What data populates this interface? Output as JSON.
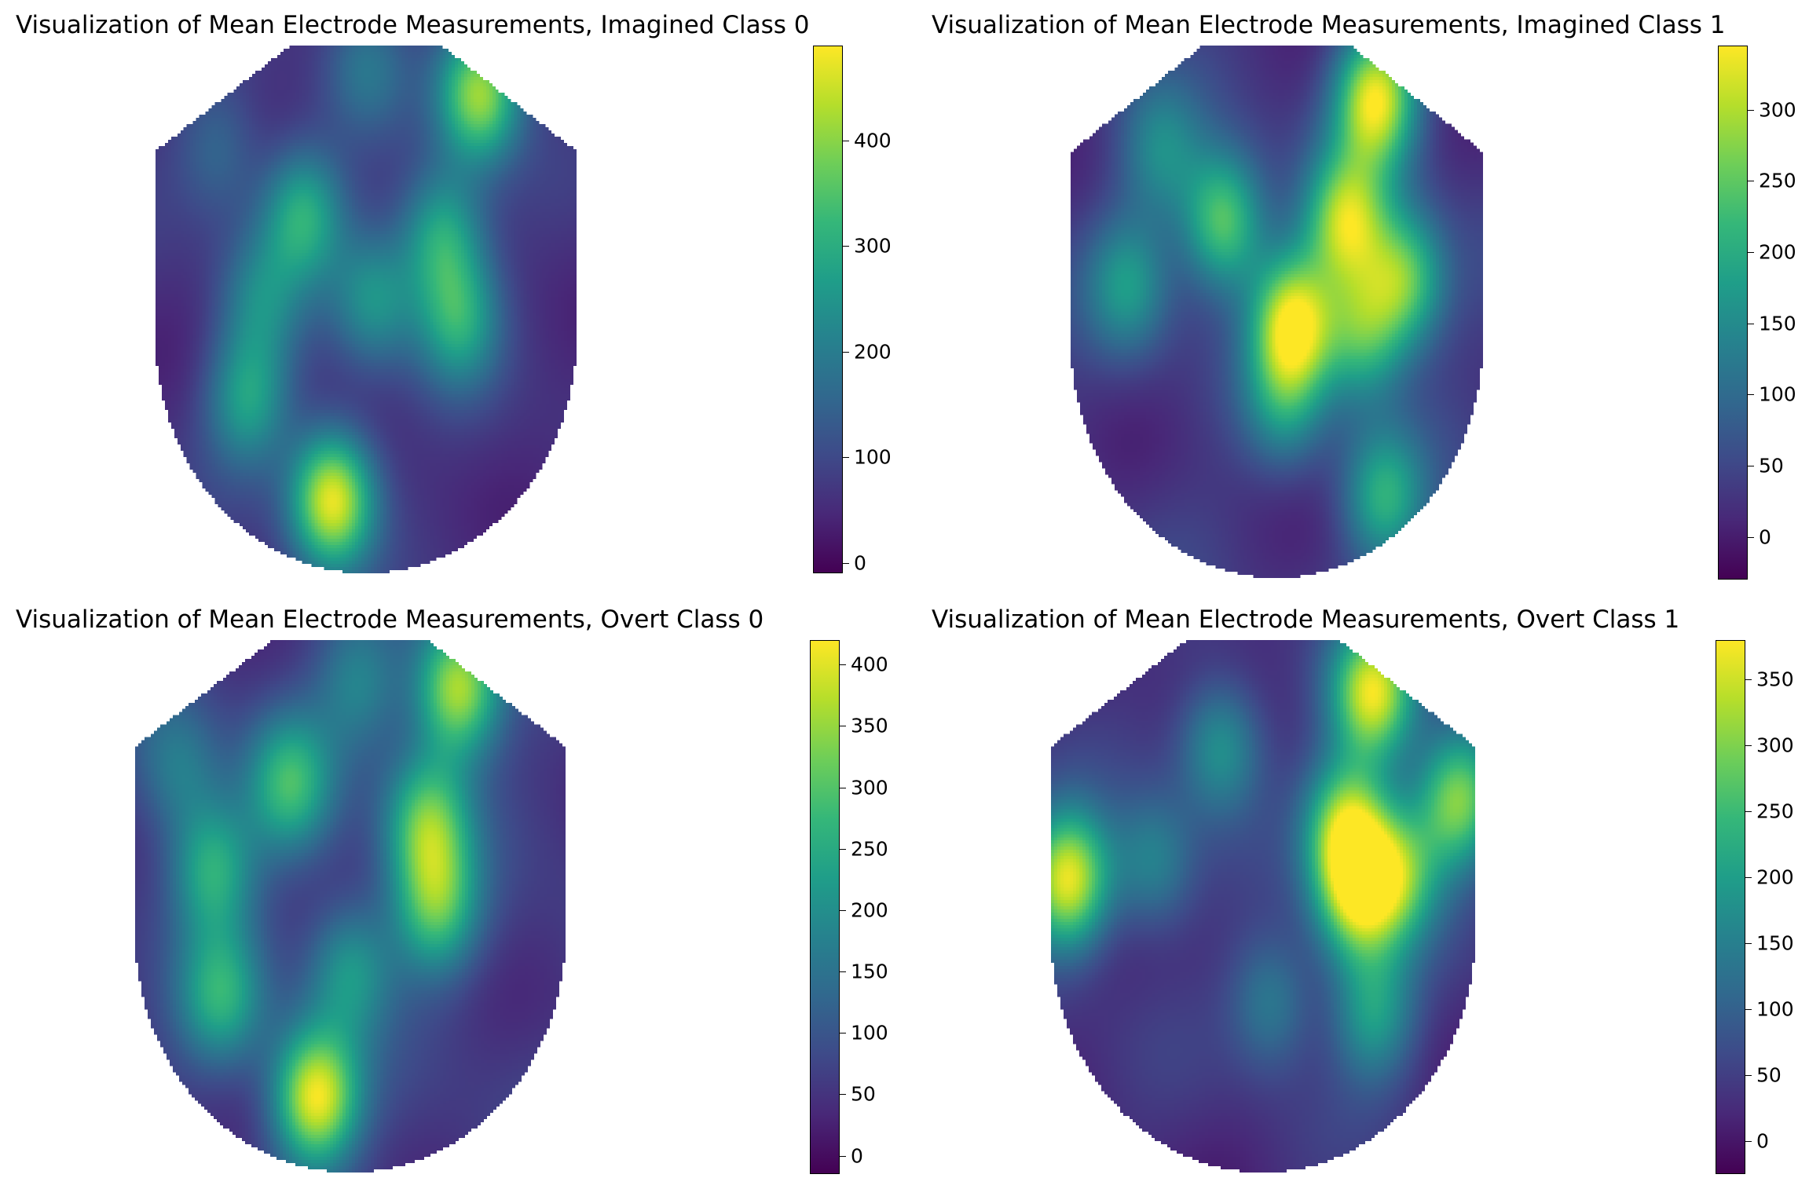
{
  "colormap": [
    "#440154",
    "#482878",
    "#3e4a89",
    "#31688e",
    "#26828e",
    "#1f9e89",
    "#35b779",
    "#6ece58",
    "#b5de2b",
    "#fde725"
  ],
  "chart_data": [
    {
      "type": "heatmap",
      "title": "Visualization of Mean Electrode Measurements, Imagined Class 0",
      "colorbar": {
        "range": [
          -10,
          490
        ],
        "ticks": [
          0,
          100,
          200,
          300,
          400
        ]
      },
      "base_level": 60,
      "hotspots": [
        {
          "x": 0.42,
          "y": 0.86,
          "value": 480
        },
        {
          "x": 0.77,
          "y": 0.09,
          "value": 420
        },
        {
          "x": 0.35,
          "y": 0.32,
          "value": 300
        },
        {
          "x": 0.68,
          "y": 0.36,
          "value": 290
        },
        {
          "x": 0.72,
          "y": 0.52,
          "value": 280
        },
        {
          "x": 0.22,
          "y": 0.67,
          "value": 270
        },
        {
          "x": 0.52,
          "y": 0.48,
          "value": 240
        },
        {
          "x": 0.25,
          "y": 0.48,
          "value": 200
        },
        {
          "x": 0.15,
          "y": 0.2,
          "value": 160
        },
        {
          "x": 0.5,
          "y": 0.04,
          "value": 170
        }
      ]
    },
    {
      "type": "heatmap",
      "title": "Visualization of Mean Electrode Measurements, Imagined Class 1",
      "colorbar": {
        "range": [
          -30,
          345
        ],
        "ticks": [
          0,
          50,
          100,
          150,
          200,
          250,
          300
        ]
      },
      "base_level": 30,
      "hotspots": [
        {
          "x": 0.74,
          "y": 0.1,
          "value": 340
        },
        {
          "x": 0.54,
          "y": 0.52,
          "value": 330
        },
        {
          "x": 0.67,
          "y": 0.33,
          "value": 290
        },
        {
          "x": 0.37,
          "y": 0.33,
          "value": 260
        },
        {
          "x": 0.81,
          "y": 0.44,
          "value": 250
        },
        {
          "x": 0.71,
          "y": 0.54,
          "value": 220
        },
        {
          "x": 0.76,
          "y": 0.85,
          "value": 200
        },
        {
          "x": 0.14,
          "y": 0.45,
          "value": 160
        },
        {
          "x": 0.52,
          "y": 0.67,
          "value": 150
        },
        {
          "x": 0.22,
          "y": 0.2,
          "value": 140
        }
      ]
    },
    {
      "type": "heatmap",
      "title": "Visualization of Mean Electrode Measurements, Overt Class 0",
      "colorbar": {
        "range": [
          -15,
          420
        ],
        "ticks": [
          0,
          50,
          100,
          150,
          200,
          250,
          300,
          350,
          400
        ]
      },
      "base_level": 60,
      "hotspots": [
        {
          "x": 0.42,
          "y": 0.86,
          "value": 415
        },
        {
          "x": 0.75,
          "y": 0.09,
          "value": 380
        },
        {
          "x": 0.68,
          "y": 0.34,
          "value": 300
        },
        {
          "x": 0.7,
          "y": 0.5,
          "value": 290
        },
        {
          "x": 0.36,
          "y": 0.27,
          "value": 270
        },
        {
          "x": 0.18,
          "y": 0.43,
          "value": 260
        },
        {
          "x": 0.2,
          "y": 0.67,
          "value": 250
        },
        {
          "x": 0.5,
          "y": 0.62,
          "value": 220
        },
        {
          "x": 0.52,
          "y": 0.08,
          "value": 180
        },
        {
          "x": 0.1,
          "y": 0.24,
          "value": 170
        }
      ]
    },
    {
      "type": "heatmap",
      "title": "Visualization of Mean Electrode Measurements, Overt Class 1",
      "colorbar": {
        "range": [
          -25,
          380
        ],
        "ticks": [
          0,
          50,
          100,
          150,
          200,
          250,
          300,
          350
        ]
      },
      "base_level": 30,
      "hotspots": [
        {
          "x": 0.04,
          "y": 0.45,
          "value": 370
        },
        {
          "x": 0.76,
          "y": 0.1,
          "value": 360
        },
        {
          "x": 0.7,
          "y": 0.35,
          "value": 320
        },
        {
          "x": 0.72,
          "y": 0.48,
          "value": 300
        },
        {
          "x": 0.96,
          "y": 0.3,
          "value": 300
        },
        {
          "x": 0.82,
          "y": 0.44,
          "value": 250
        },
        {
          "x": 0.76,
          "y": 0.7,
          "value": 200
        },
        {
          "x": 0.4,
          "y": 0.2,
          "value": 190
        },
        {
          "x": 0.24,
          "y": 0.42,
          "value": 160
        },
        {
          "x": 0.52,
          "y": 0.68,
          "value": 150
        }
      ]
    }
  ]
}
